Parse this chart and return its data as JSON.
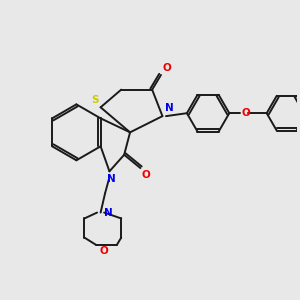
{
  "background_color": "#e8e8e8",
  "bond_color": "#1a1a1a",
  "N_color": "#0000ee",
  "O_color": "#ee0000",
  "S_color": "#cccc00",
  "figsize": [
    3.0,
    3.0
  ],
  "dpi": 100,
  "lw": 1.4,
  "xlim": [
    0,
    10
  ],
  "ylim": [
    0,
    10
  ]
}
